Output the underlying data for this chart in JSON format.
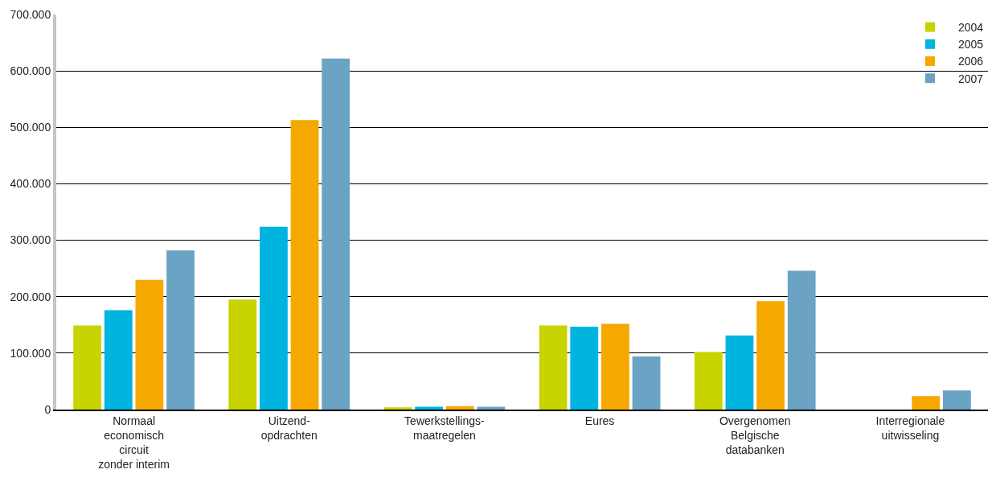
{
  "chart_data": {
    "type": "bar",
    "categories": [
      "Normaal\neconomisch\ncircuit\nzonder interim",
      "Uitzend-\nopdrachten",
      "Tewerkstellings-\nmaatregelen",
      "Eures",
      "Overgenomen\nBelgische\ndatabanken",
      "Interregionale\nuitwisseling"
    ],
    "series": [
      {
        "name": "2004",
        "color": "#c8d400",
        "values": [
          149000,
          195000,
          4000,
          149000,
          102000,
          0
        ]
      },
      {
        "name": "2005",
        "color": "#00b4e0",
        "values": [
          176000,
          324000,
          5000,
          147000,
          131000,
          0
        ]
      },
      {
        "name": "2006",
        "color": "#f5a800",
        "values": [
          230000,
          513000,
          6000,
          152000,
          192000,
          24000
        ]
      },
      {
        "name": "2007",
        "color": "#6aa3c3",
        "values": [
          282000,
          622000,
          5000,
          94000,
          246000,
          34000
        ]
      }
    ],
    "ylim": [
      0,
      700000
    ],
    "yticks": [
      0,
      {
        "value": 100000,
        "label": "100.000"
      },
      {
        "value": 200000,
        "label": "200.000"
      },
      {
        "value": 300000,
        "label": "300.000"
      },
      {
        "value": 400000,
        "label": "400.000"
      },
      {
        "value": 500000,
        "label": "500.000"
      },
      {
        "value": 600000,
        "label": "600.000"
      },
      {
        "value": 700000,
        "label": "700.000"
      }
    ],
    "grid": "y",
    "legend": "top right"
  }
}
